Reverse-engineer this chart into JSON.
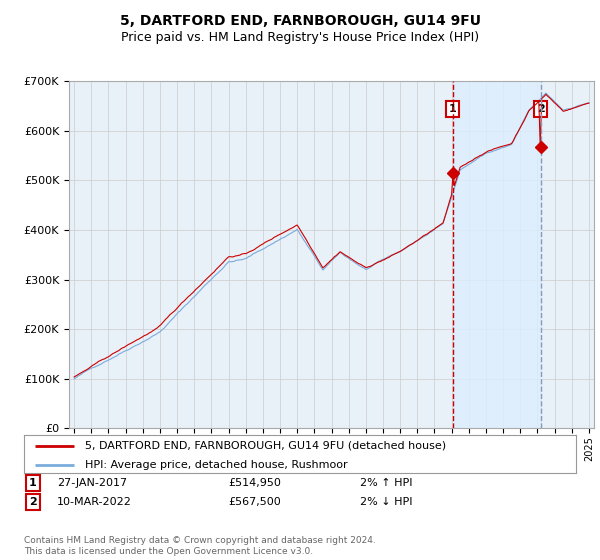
{
  "title": "5, DARTFORD END, FARNBOROUGH, GU14 9FU",
  "subtitle": "Price paid vs. HM Land Registry's House Price Index (HPI)",
  "footer": "Contains HM Land Registry data © Crown copyright and database right 2024.\nThis data is licensed under the Open Government Licence v3.0.",
  "legend_line1": "5, DARTFORD END, FARNBOROUGH, GU14 9FU (detached house)",
  "legend_line2": "HPI: Average price, detached house, Rushmoor",
  "annotation1": {
    "num": "1",
    "date": "27-JAN-2017",
    "price": "£514,950",
    "pct": "2% ↑ HPI"
  },
  "annotation2": {
    "num": "2",
    "date": "10-MAR-2022",
    "price": "£567,500",
    "pct": "2% ↓ HPI"
  },
  "sale1_x": 2017.07,
  "sale1_y": 514950,
  "sale2_x": 2022.19,
  "sale2_y": 567500,
  "ylim": [
    0,
    700000
  ],
  "xlim_start": 1994.7,
  "xlim_end": 2025.3,
  "red_color": "#cc0000",
  "blue_color": "#7aacdc",
  "shade_color": "#ddeeff",
  "bg_color": "#e8f0f8",
  "plot_bg": "#ffffff",
  "grid_color": "#cccccc",
  "title_fontsize": 10,
  "subtitle_fontsize": 9
}
